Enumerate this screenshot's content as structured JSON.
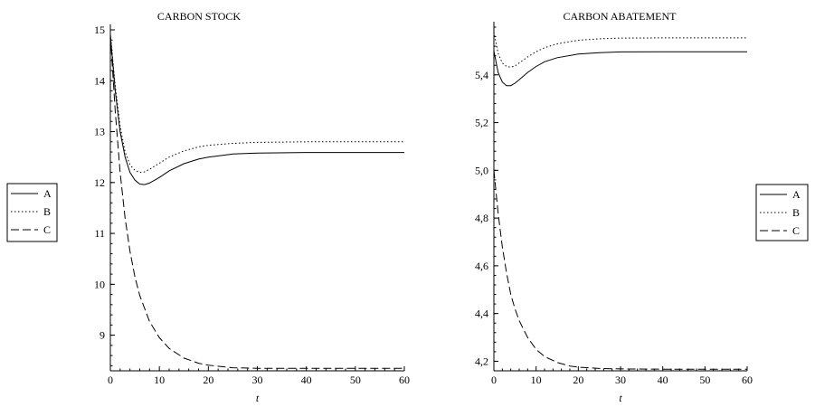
{
  "chart_data": [
    {
      "type": "line",
      "title": "CARBON STOCK",
      "xlabel": "t",
      "ylabel": "",
      "xlim": [
        0,
        60
      ],
      "ylim": [
        8.3,
        15
      ],
      "xticks": [
        0,
        10,
        20,
        30,
        40,
        50,
        60
      ],
      "yticks": [
        9,
        10,
        11,
        12,
        13,
        14,
        15
      ],
      "ytick_labels": [
        "9",
        "10",
        "11",
        "12",
        "13",
        "14",
        "15"
      ],
      "legend_position": "left",
      "series": [
        {
          "name": "A",
          "style": "solid",
          "x": [
            0,
            1,
            2,
            3,
            4,
            5,
            6,
            7,
            8,
            10,
            12,
            15,
            18,
            20,
            25,
            30,
            40,
            50,
            60
          ],
          "y": [
            14.9,
            13.8,
            13.0,
            12.5,
            12.2,
            12.05,
            11.97,
            11.96,
            11.99,
            12.1,
            12.23,
            12.37,
            12.46,
            12.5,
            12.56,
            12.58,
            12.59,
            12.59,
            12.59
          ]
        },
        {
          "name": "B",
          "style": "dotted",
          "x": [
            0,
            1,
            2,
            3,
            4,
            5,
            6,
            7,
            8,
            10,
            12,
            15,
            18,
            20,
            25,
            30,
            40,
            50,
            60
          ],
          "y": [
            14.9,
            13.9,
            13.1,
            12.6,
            12.35,
            12.24,
            12.2,
            12.21,
            12.26,
            12.38,
            12.5,
            12.62,
            12.7,
            12.73,
            12.77,
            12.79,
            12.8,
            12.8,
            12.8
          ]
        },
        {
          "name": "C",
          "style": "dashed",
          "x": [
            0,
            1,
            2,
            3,
            4,
            5,
            6,
            8,
            10,
            12,
            15,
            18,
            20,
            25,
            30,
            40,
            50,
            60
          ],
          "y": [
            14.9,
            13.4,
            12.2,
            11.3,
            10.65,
            10.15,
            9.78,
            9.27,
            8.95,
            8.74,
            8.55,
            8.45,
            8.41,
            8.36,
            8.35,
            8.35,
            8.35,
            8.35
          ]
        }
      ]
    },
    {
      "type": "line",
      "title": "CARBON ABATEMENT",
      "xlabel": "t",
      "ylabel": "",
      "xlim": [
        0,
        60
      ],
      "ylim": [
        4.16,
        5.6
      ],
      "xticks": [
        0,
        10,
        20,
        30,
        40,
        50,
        60
      ],
      "yticks": [
        4.2,
        4.4,
        4.6,
        4.8,
        5.0,
        5.2,
        5.4
      ],
      "ytick_labels": [
        "4,2",
        "4,4",
        "4,6",
        "4,8",
        "5,0",
        "5,2",
        "5,4"
      ],
      "legend_position": "right",
      "series": [
        {
          "name": "A",
          "style": "solid",
          "x": [
            0,
            1,
            2,
            3,
            4,
            5,
            6,
            8,
            10,
            12,
            15,
            20,
            25,
            30,
            40,
            50,
            60
          ],
          "y": [
            5.5,
            5.41,
            5.37,
            5.355,
            5.355,
            5.365,
            5.38,
            5.41,
            5.435,
            5.455,
            5.472,
            5.487,
            5.493,
            5.496,
            5.497,
            5.497,
            5.497
          ]
        },
        {
          "name": "B",
          "style": "dotted",
          "x": [
            0,
            1,
            2,
            3,
            4,
            5,
            6,
            8,
            10,
            12,
            15,
            20,
            25,
            30,
            40,
            50,
            60
          ],
          "y": [
            5.58,
            5.49,
            5.45,
            5.435,
            5.432,
            5.437,
            5.45,
            5.475,
            5.497,
            5.514,
            5.53,
            5.545,
            5.551,
            5.554,
            5.555,
            5.555,
            5.555
          ]
        },
        {
          "name": "C",
          "style": "dashed",
          "x": [
            0,
            1,
            2,
            3,
            4,
            5,
            6,
            8,
            10,
            12,
            15,
            18,
            20,
            25,
            30,
            40,
            50,
            60
          ],
          "y": [
            5.0,
            4.82,
            4.68,
            4.57,
            4.48,
            4.42,
            4.37,
            4.3,
            4.25,
            4.22,
            4.195,
            4.18,
            4.175,
            4.17,
            4.168,
            4.167,
            4.167,
            4.167
          ]
        }
      ]
    }
  ]
}
